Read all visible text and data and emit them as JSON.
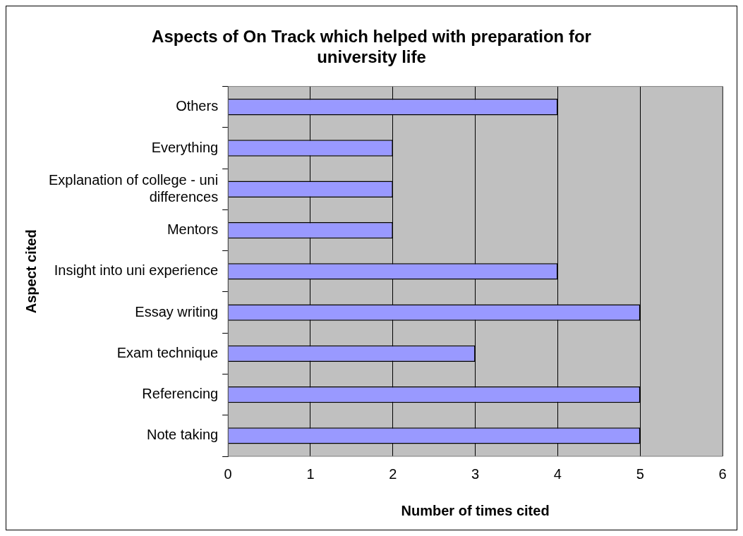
{
  "chart_data": {
    "type": "bar",
    "orientation": "horizontal",
    "title": "Aspects of On Track which helped with preparation for university life",
    "xlabel": "Number of times cited",
    "ylabel": "Aspect cited",
    "categories": [
      "Others",
      "Everything",
      "Explanation of college - uni differences",
      "Mentors",
      "Insight into uni experience",
      "Essay writing",
      "Exam technique",
      "Referencing",
      "Note taking"
    ],
    "values": [
      4,
      2,
      2,
      2,
      4,
      5,
      3,
      5,
      5
    ],
    "color": "#9999ff",
    "xlim": [
      0,
      6
    ],
    "xticks": [
      0,
      1,
      2,
      3,
      4,
      5,
      6
    ],
    "grid": "x",
    "legend": false
  }
}
